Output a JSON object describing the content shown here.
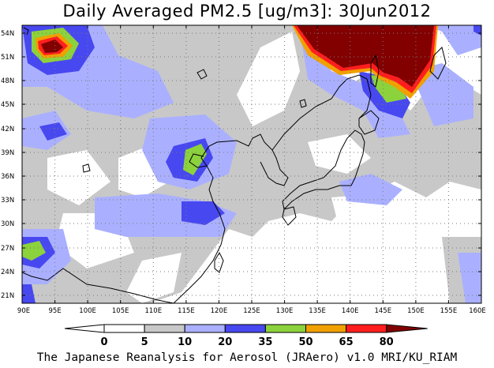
{
  "title": "Daily Averaged PM2.5 [ug/m3]: 30Jun2012",
  "footer": "The Japanese Reanalysis for Aerosol (JRAero) v1.0 MRI/KU_RIAM",
  "map": {
    "lon_ticks": [
      "90E",
      "95E",
      "100E",
      "105E",
      "110E",
      "115E",
      "120E",
      "125E",
      "130E",
      "135E",
      "140E",
      "145E",
      "150E",
      "155E",
      "160E"
    ],
    "lat_ticks": [
      "54N",
      "51N",
      "48N",
      "45N",
      "42N",
      "39N",
      "36N",
      "33N",
      "30N",
      "27N",
      "24N",
      "21N"
    ],
    "lon_range": [
      90,
      160
    ],
    "lat_range": [
      20,
      55
    ],
    "grid": "dotted"
  },
  "colorbar": {
    "labels": [
      "0",
      "5",
      "10",
      "20",
      "35",
      "50",
      "65",
      "80"
    ],
    "colors": [
      "#ffffff",
      "#c8c8c8",
      "#aab0ff",
      "#4848f0",
      "#8cd23c",
      "#f0a000",
      "#ff1e1e",
      "#820000"
    ]
  }
}
